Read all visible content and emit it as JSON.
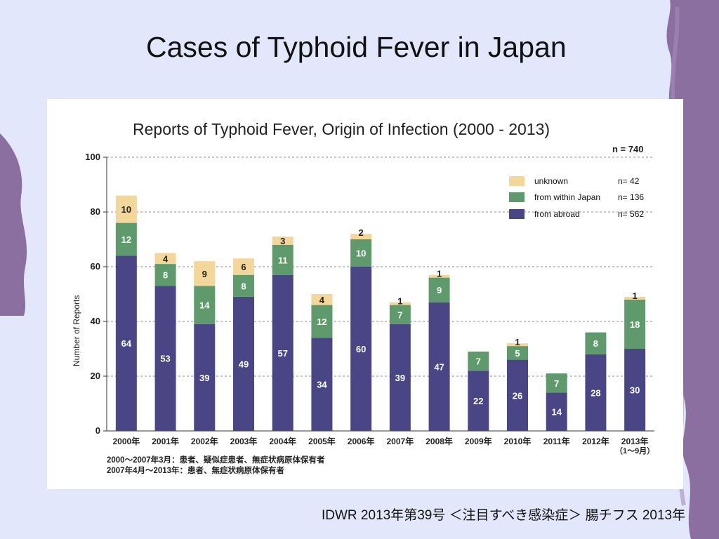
{
  "slide": {
    "title": "Cases of Typhoid Fever in Japan",
    "source": "IDWR 2013年第39号 ＜注目すべき感染症＞ 腸チフス 2013年"
  },
  "colors": {
    "background": "#e2e7fb",
    "decor": "#8a6fa0",
    "abroad": "#4a4585",
    "within": "#5e9a6b",
    "unknown": "#f3d69a"
  },
  "chart_data": {
    "type": "bar",
    "stacked": true,
    "title": "Reports of Typhoid Fever, Origin of Infection  (2000 - 2013)",
    "total_label": "n = 740",
    "ylabel": "Number of Reports",
    "xlabel": "",
    "ylim": [
      0,
      100
    ],
    "yticks": [
      0,
      20,
      40,
      60,
      80,
      100
    ],
    "grid": "dashed horizontal",
    "legend_position": "top-right",
    "categories": [
      {
        "label": "2000年"
      },
      {
        "label": "2001年"
      },
      {
        "label": "2002年"
      },
      {
        "label": "2003年"
      },
      {
        "label": "2004年"
      },
      {
        "label": "2005年"
      },
      {
        "label": "2006年"
      },
      {
        "label": "2007年"
      },
      {
        "label": "2008年"
      },
      {
        "label": "2009年"
      },
      {
        "label": "2010年"
      },
      {
        "label": "2011年"
      },
      {
        "label": "2012年"
      },
      {
        "label": "2013年",
        "sub": "（1〜9月）"
      }
    ],
    "series": [
      {
        "name": "from abroad",
        "n_label": "n= 562",
        "color": "#4a4585",
        "label_color": "#ffffff",
        "values": [
          64,
          53,
          39,
          49,
          57,
          34,
          60,
          39,
          47,
          22,
          26,
          14,
          28,
          30
        ]
      },
      {
        "name": "from within Japan",
        "n_label": "n= 136",
        "color": "#5e9a6b",
        "label_color": "#ffffff",
        "values": [
          12,
          8,
          14,
          8,
          11,
          12,
          10,
          7,
          9,
          7,
          5,
          7,
          8,
          18
        ]
      },
      {
        "name": "unknown",
        "n_label": "n= 42",
        "color": "#f3d69a",
        "label_color": "#222222",
        "values": [
          10,
          4,
          9,
          6,
          3,
          4,
          2,
          1,
          1,
          0,
          1,
          0,
          0,
          1
        ]
      }
    ],
    "notes": [
      "2000〜2007年3月：患者、疑似症患者、無症状病原体保有者",
      "2007年4月〜2013年：患者、無症状病原体保有者"
    ]
  }
}
